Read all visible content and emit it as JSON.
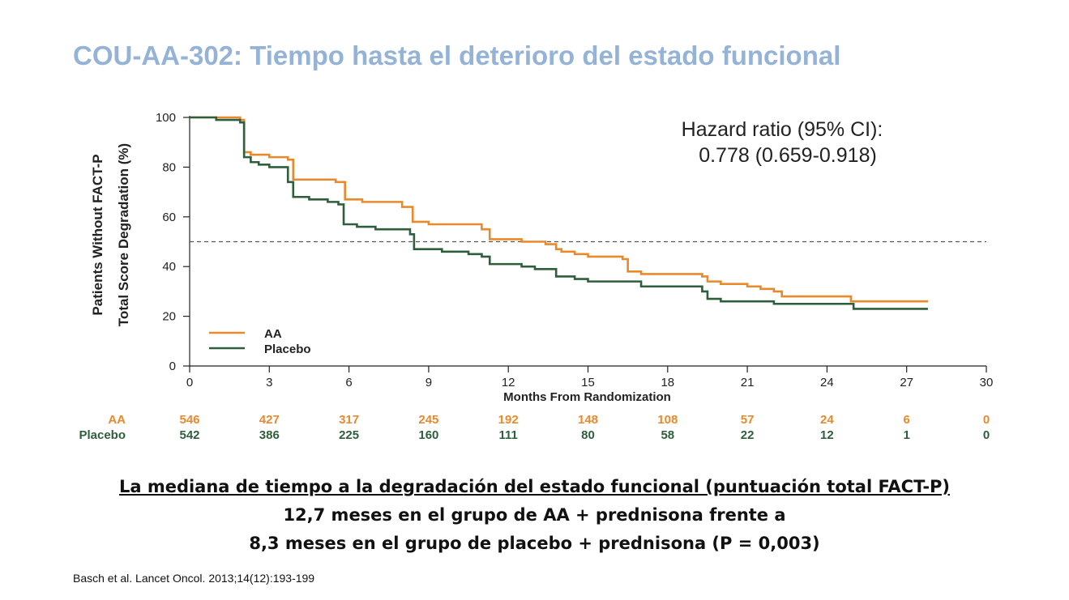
{
  "slide": {
    "title": "COU-AA-302: Tiempo hasta el deterioro del estado funcional",
    "conclusion": {
      "headline": "La mediana de tiempo a la degradación del estado funcional (puntuación total FACT-P)",
      "line2": "12,7 meses en el grupo de AA + prednisona frente a",
      "line3": "8,3 meses en el grupo de placebo + prednisona (P = 0,003)"
    },
    "citation": "Basch et al. Lancet Oncol. 2013;14(12):193-199"
  },
  "chart_data": {
    "type": "line",
    "line_shape": "step",
    "ylabel_line1": "Patients Without FACT-P",
    "ylabel_line2": "Total Score Degradation (%)",
    "xlabel": "Months From Randomization",
    "xlim": [
      0,
      30
    ],
    "ylim": [
      0,
      100
    ],
    "xticks": [
      0,
      3,
      6,
      9,
      12,
      15,
      18,
      21,
      24,
      27,
      30
    ],
    "yticks": [
      0,
      20,
      40,
      60,
      80,
      100
    ],
    "grid": false,
    "reference_line": {
      "y": 50,
      "style": "dashed",
      "color": "#555555"
    },
    "annotation": {
      "line1": "Hazard ratio (95% CI):",
      "line2": "0.778 (0.659-0.918)"
    },
    "legend": {
      "placement": "bottom-left"
    },
    "series": [
      {
        "name": "AA",
        "color": "#e88a2c",
        "x": [
          0,
          1.0,
          1.9,
          2.05,
          2.3,
          3.0,
          3.7,
          3.9,
          5.5,
          5.85,
          6.5,
          8.0,
          8.4,
          9.0,
          11.0,
          11.3,
          12.5,
          13.4,
          13.8,
          14.0,
          14.5,
          15.0,
          16.3,
          16.5,
          17.0,
          19.3,
          19.5,
          20.0,
          21.0,
          21.5,
          22.0,
          22.3,
          24.8,
          24.9,
          27.8
        ],
        "y": [
          100,
          100,
          99,
          86,
          85,
          84,
          83,
          75,
          74,
          67,
          66,
          64,
          58,
          57,
          55,
          51,
          50,
          49,
          47,
          46,
          45,
          44,
          43,
          38,
          37,
          36,
          34,
          33,
          32,
          31,
          30,
          28,
          28,
          26,
          26
        ]
      },
      {
        "name": "Placebo",
        "color": "#2e5e3b",
        "x": [
          0,
          1.0,
          1.9,
          2.05,
          2.3,
          2.6,
          3.0,
          3.7,
          3.9,
          4.5,
          5.2,
          5.6,
          5.8,
          6.3,
          7.0,
          8.3,
          8.45,
          9.5,
          10.5,
          11.0,
          11.3,
          12.5,
          13.0,
          13.8,
          14.5,
          15.0,
          16.0,
          17.0,
          19.3,
          19.5,
          20.0,
          21.5,
          22.0,
          24.8,
          25.0,
          27.8
        ],
        "y": [
          100,
          99,
          98,
          84,
          82,
          81,
          80,
          74,
          68,
          67,
          66,
          65,
          57,
          56,
          55,
          53,
          47,
          46,
          45,
          44,
          41,
          40,
          39,
          36,
          35,
          34,
          34,
          32,
          30,
          27,
          26,
          26,
          25,
          25,
          23,
          23
        ]
      }
    ],
    "risk_table": {
      "rows": [
        {
          "label": "AA",
          "color": "#e88a2c",
          "values": [
            546,
            427,
            317,
            245,
            192,
            148,
            108,
            57,
            24,
            6,
            0
          ]
        },
        {
          "label": "Placebo",
          "color": "#2e5e3b",
          "values": [
            542,
            386,
            225,
            160,
            111,
            80,
            58,
            22,
            12,
            1,
            0
          ]
        }
      ]
    }
  }
}
